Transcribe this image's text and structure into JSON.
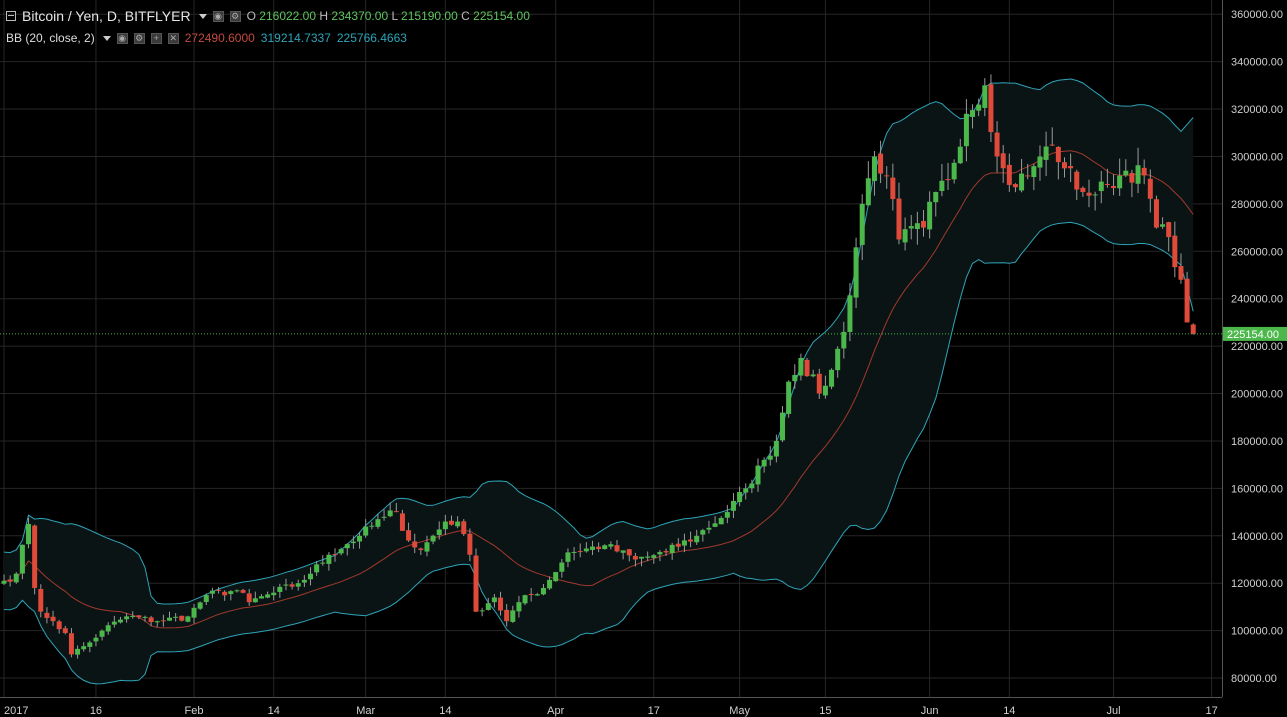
{
  "header": {
    "symbol_title": "Bitcoin / Yen, D, BITFLYER",
    "open_label": "O",
    "open_value": "216022.00",
    "high_label": "H",
    "high_value": "234370.00",
    "low_label": "L",
    "low_value": "215190.00",
    "close_label": "C",
    "close_value": "225154.00"
  },
  "indicator": {
    "name": "BB (20, close, 2)",
    "basis": "272490.6000",
    "upper": "319214.7337",
    "lower": "225766.4663"
  },
  "colors": {
    "background": "#000000",
    "grid": "#262626",
    "up": "#4cb84c",
    "down": "#e04a3a",
    "bb_band": "#2ea4b8",
    "bb_basis": "#a0392e",
    "fill": "#0b1414",
    "axis_text": "#d0d0d0",
    "price_tag": "#4cb84c"
  },
  "icons": [
    "collapse-icon",
    "dropdown-caret-icon",
    "eye-icon",
    "settings-icon",
    "plus-icon",
    "close-icon"
  ],
  "chart_data": {
    "type": "candlestick",
    "y_ticks": [
      80000,
      100000,
      120000,
      140000,
      160000,
      180000,
      200000,
      220000,
      240000,
      260000,
      280000,
      300000,
      320000,
      340000,
      360000
    ],
    "y_tick_labels": [
      "80000.00",
      "100000.00",
      "120000.00",
      "140000.00",
      "160000.00",
      "180000.00",
      "200000.00",
      "220000.00",
      "240000.00",
      "260000.00",
      "280000.00",
      "300000.00",
      "320000.00",
      "340000.00",
      "360000.00"
    ],
    "ylim": [
      72000,
      366000
    ],
    "x_ticks": [
      {
        "label": "2017",
        "day": 0
      },
      {
        "label": "16",
        "day": 15
      },
      {
        "label": "Feb",
        "day": 31
      },
      {
        "label": "14",
        "day": 44
      },
      {
        "label": "Mar",
        "day": 59
      },
      {
        "label": "14",
        "day": 72
      },
      {
        "label": "Apr",
        "day": 90
      },
      {
        "label": "17",
        "day": 106
      },
      {
        "label": "May",
        "day": 120
      },
      {
        "label": "15",
        "day": 134
      },
      {
        "label": "Jun",
        "day": 151
      },
      {
        "label": "14",
        "day": 164
      },
      {
        "label": "Jul",
        "day": 181
      },
      {
        "label": "17",
        "day": 197
      }
    ],
    "last_price": 225154,
    "last_price_label": "225154.00",
    "close_anchors": [
      [
        0,
        121000
      ],
      [
        2,
        124000
      ],
      [
        4,
        145000
      ],
      [
        5,
        118000
      ],
      [
        6,
        108000
      ],
      [
        8,
        104000
      ],
      [
        10,
        99000
      ],
      [
        11,
        90000
      ],
      [
        14,
        95000
      ],
      [
        16,
        100000
      ],
      [
        20,
        106000
      ],
      [
        25,
        104000
      ],
      [
        30,
        106000
      ],
      [
        33,
        115000
      ],
      [
        38,
        117000
      ],
      [
        40,
        112000
      ],
      [
        44,
        116000
      ],
      [
        48,
        120000
      ],
      [
        50,
        124000
      ],
      [
        53,
        132000
      ],
      [
        58,
        140000
      ],
      [
        62,
        148000
      ],
      [
        64,
        150000
      ],
      [
        66,
        138000
      ],
      [
        68,
        134000
      ],
      [
        72,
        146000
      ],
      [
        74,
        146000
      ],
      [
        76,
        132000
      ],
      [
        77,
        108000
      ],
      [
        80,
        114000
      ],
      [
        82,
        104000
      ],
      [
        84,
        112000
      ],
      [
        88,
        118000
      ],
      [
        92,
        133000
      ],
      [
        98,
        136000
      ],
      [
        103,
        130000
      ],
      [
        108,
        133000
      ],
      [
        113,
        140000
      ],
      [
        118,
        150000
      ],
      [
        121,
        160000
      ],
      [
        124,
        172000
      ],
      [
        126,
        180000
      ],
      [
        128,
        205000
      ],
      [
        130,
        215000
      ],
      [
        133,
        200000
      ],
      [
        135,
        210000
      ],
      [
        137,
        226000
      ],
      [
        140,
        280000
      ],
      [
        142,
        300000
      ],
      [
        144,
        292000
      ],
      [
        146,
        265000
      ],
      [
        150,
        270000
      ],
      [
        152,
        285000
      ],
      [
        154,
        290000
      ],
      [
        157,
        318000
      ],
      [
        160,
        330000
      ],
      [
        162,
        300000
      ],
      [
        164,
        288000
      ],
      [
        167,
        292000
      ],
      [
        169,
        300000
      ],
      [
        171,
        305000
      ],
      [
        173,
        295000
      ],
      [
        176,
        285000
      ],
      [
        178,
        284000
      ],
      [
        180,
        288000
      ],
      [
        183,
        294000
      ],
      [
        186,
        292000
      ],
      [
        188,
        270000
      ],
      [
        190,
        266000
      ],
      [
        192,
        248000
      ],
      [
        193,
        230000
      ],
      [
        194,
        225154
      ]
    ],
    "series": [
      {
        "name": "BB upper",
        "values": "computed from 20-day close, 2 std dev"
      },
      {
        "name": "BB basis",
        "values": "20-day SMA of close"
      },
      {
        "name": "BB lower",
        "values": "computed from 20-day close, 2 std dev"
      }
    ]
  }
}
